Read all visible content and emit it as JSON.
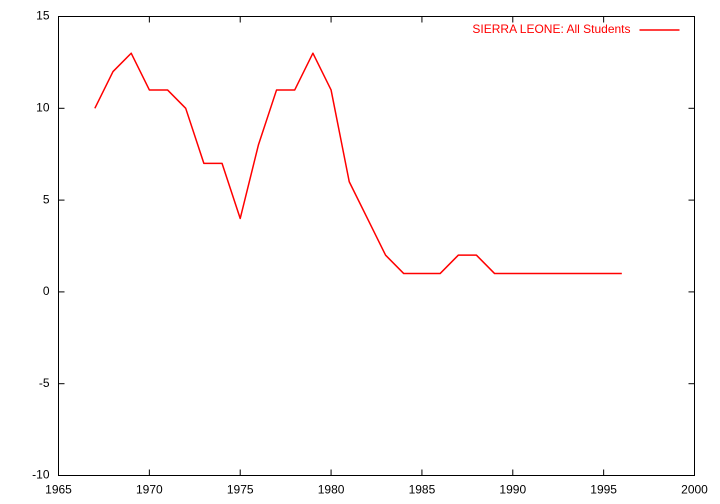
{
  "chart_data": {
    "type": "line",
    "x": [
      1967,
      1968,
      1969,
      1970,
      1971,
      1972,
      1973,
      1974,
      1975,
      1976,
      1977,
      1978,
      1979,
      1980,
      1981,
      1982,
      1983,
      1984,
      1985,
      1986,
      1987,
      1988,
      1989,
      1990,
      1991,
      1992,
      1993,
      1994,
      1995,
      1996
    ],
    "series": [
      {
        "name": "SIERRA LEONE: All Students",
        "color": "#ff0000",
        "values": [
          10,
          12,
          13,
          11,
          11,
          10,
          7,
          7,
          4,
          8,
          11,
          11,
          13,
          11,
          6,
          4,
          2,
          1,
          1,
          1,
          2,
          2,
          1,
          1,
          1,
          1,
          1,
          1,
          1,
          1
        ]
      }
    ],
    "xlim": [
      1965,
      2000
    ],
    "xticks": [
      1965,
      1970,
      1975,
      1980,
      1985,
      1990,
      1995,
      2000
    ],
    "ylim": [
      -10,
      15
    ],
    "yticks": [
      -10,
      -5,
      0,
      5,
      10,
      15
    ],
    "grid": false,
    "legend": "top-right"
  }
}
